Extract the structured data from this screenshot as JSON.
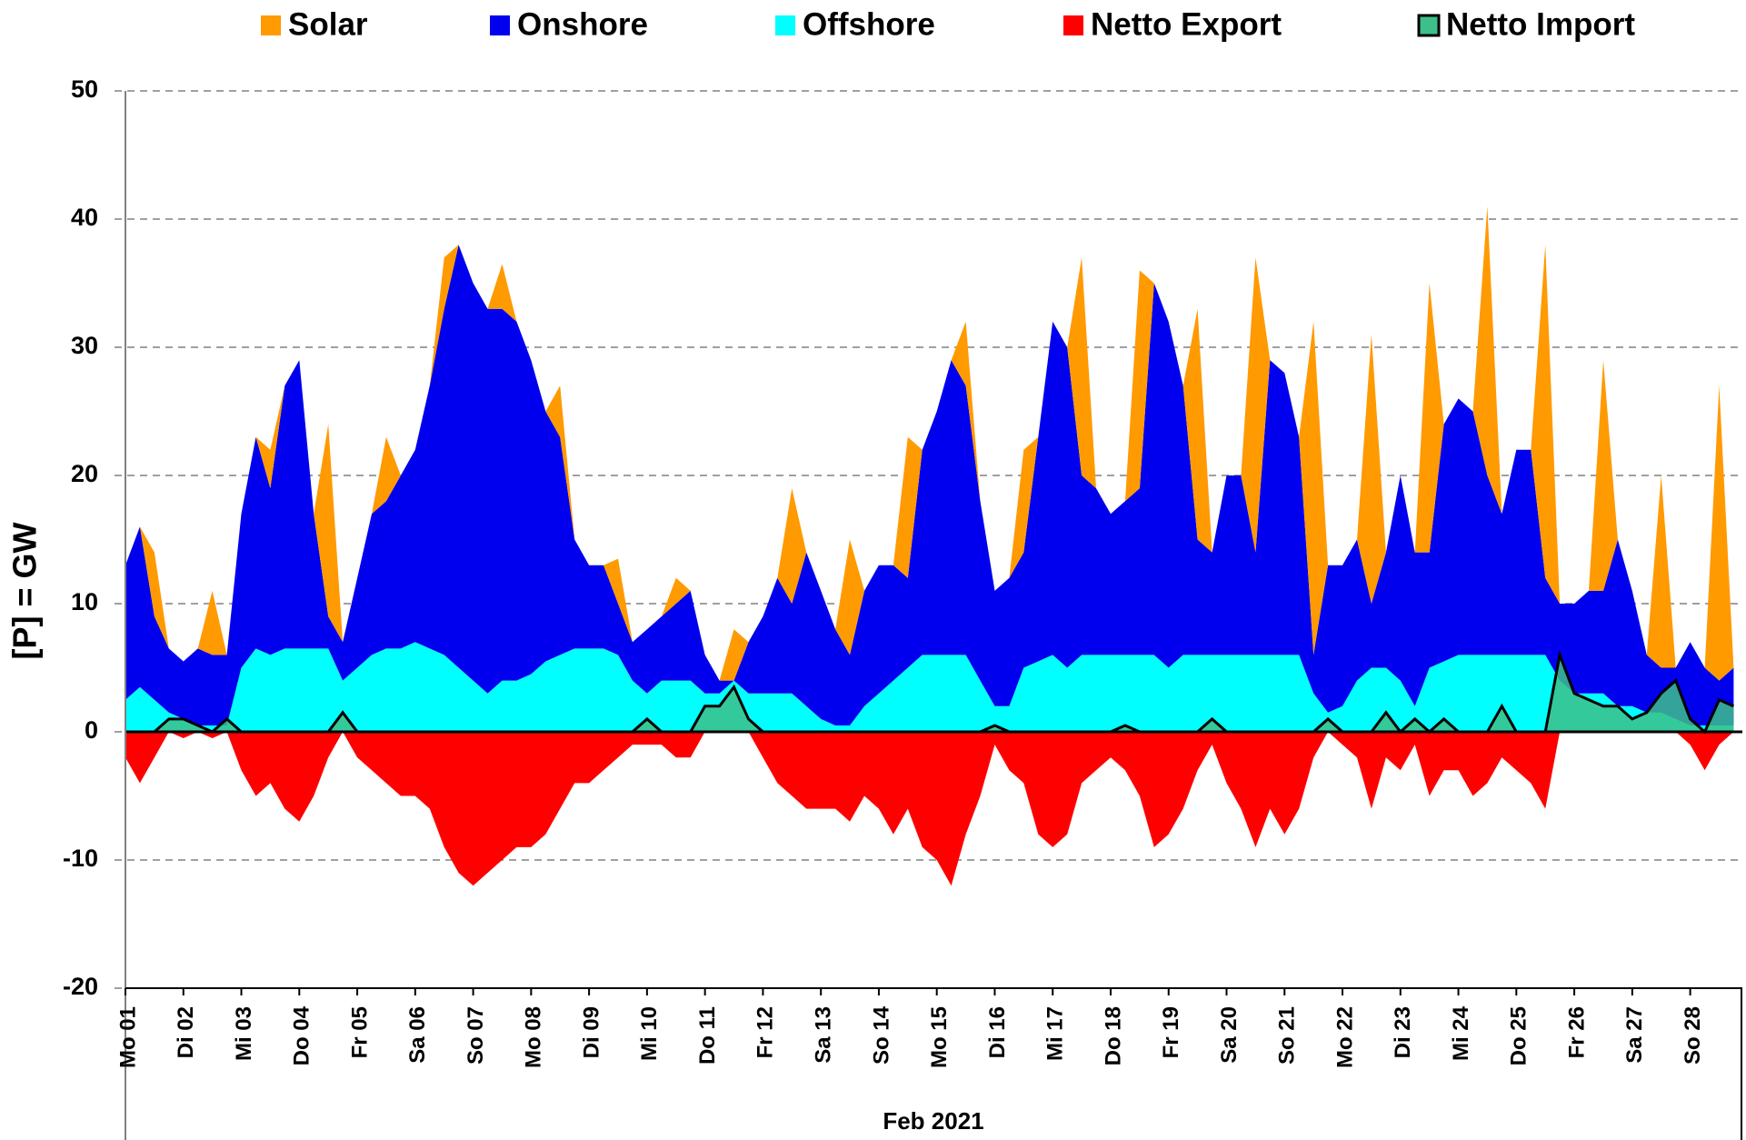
{
  "chart_data": {
    "type": "stacked-area",
    "xlabel": "Feb 2021",
    "ylabel": "[P] = GW",
    "xlim": [
      0,
      27.9
    ],
    "ylim": [
      -20,
      50
    ],
    "yticks": [
      50,
      40,
      30,
      20,
      10,
      0,
      -10,
      -20
    ],
    "negative_tick_color": "#ff0000",
    "grid": true,
    "legend": "top",
    "xticks": [
      {
        "value": 0,
        "label": "Mo 01"
      },
      {
        "value": 1,
        "label": "Di 02"
      },
      {
        "value": 2,
        "label": "Mi 03"
      },
      {
        "value": 3,
        "label": "Do 04"
      },
      {
        "value": 4,
        "label": "Fr 05"
      },
      {
        "value": 5,
        "label": "Sa 06"
      },
      {
        "value": 6,
        "label": "So 07"
      },
      {
        "value": 7,
        "label": "Mo 08"
      },
      {
        "value": 8,
        "label": "Di 09"
      },
      {
        "value": 9,
        "label": "Mi 10"
      },
      {
        "value": 10,
        "label": "Do 11"
      },
      {
        "value": 11,
        "label": "Fr 12"
      },
      {
        "value": 12,
        "label": "Sa 13"
      },
      {
        "value": 13,
        "label": "So 14"
      },
      {
        "value": 14,
        "label": "Mo 15"
      },
      {
        "value": 15,
        "label": "Di 16"
      },
      {
        "value": 16,
        "label": "Mi 17"
      },
      {
        "value": 17,
        "label": "Do 18"
      },
      {
        "value": 18,
        "label": "Fr 19"
      },
      {
        "value": 19,
        "label": "Sa 20"
      },
      {
        "value": 20,
        "label": "So 21"
      },
      {
        "value": 21,
        "label": "Mo 22"
      },
      {
        "value": 22,
        "label": "Di 23"
      },
      {
        "value": 23,
        "label": "Mi 24"
      },
      {
        "value": 24,
        "label": "Do 25"
      },
      {
        "value": 25,
        "label": "Fr 26"
      },
      {
        "value": 26,
        "label": "Sa 27"
      },
      {
        "value": 27,
        "label": "So 28"
      }
    ],
    "x": [
      0,
      0.25,
      0.5,
      0.75,
      1,
      1.25,
      1.5,
      1.75,
      2,
      2.25,
      2.5,
      2.75,
      3,
      3.25,
      3.5,
      3.75,
      4,
      4.25,
      4.5,
      4.75,
      5,
      5.25,
      5.5,
      5.75,
      6,
      6.25,
      6.5,
      6.75,
      7,
      7.25,
      7.5,
      7.75,
      8,
      8.25,
      8.5,
      8.75,
      9,
      9.25,
      9.5,
      9.75,
      10,
      10.25,
      10.5,
      10.75,
      11,
      11.25,
      11.5,
      11.75,
      12,
      12.25,
      12.5,
      12.75,
      13,
      13.25,
      13.5,
      13.75,
      14,
      14.25,
      14.5,
      14.75,
      15,
      15.25,
      15.5,
      15.75,
      16,
      16.25,
      16.5,
      16.75,
      17,
      17.25,
      17.5,
      17.75,
      18,
      18.25,
      18.5,
      18.75,
      19,
      19.25,
      19.5,
      19.75,
      20,
      20.25,
      20.5,
      20.75,
      21,
      21.25,
      21.5,
      21.75,
      22,
      22.25,
      22.5,
      22.75,
      23,
      23.25,
      23.5,
      23.75,
      24,
      24.25,
      24.5,
      24.75,
      25,
      25.25,
      25.5,
      25.75,
      26,
      26.25,
      26.5,
      26.75,
      27,
      27.25,
      27.5,
      27.75
    ],
    "series": [
      {
        "name": "Solar",
        "color": "#ff9a00",
        "stack": true,
        "values": [
          0,
          0,
          5,
          0,
          0,
          0,
          5,
          0,
          0,
          0,
          3,
          0,
          0,
          0,
          15,
          0,
          0,
          0,
          5,
          0,
          0,
          0,
          4,
          0,
          0,
          0,
          3.5,
          0,
          0,
          0,
          4,
          0,
          0,
          0,
          3.5,
          0,
          0,
          0,
          2,
          0,
          0,
          0,
          4,
          0,
          0,
          0,
          9,
          0,
          0,
          0,
          9,
          0,
          0,
          0,
          11,
          0,
          0,
          0,
          5,
          0,
          0,
          0,
          8,
          0,
          0,
          0,
          17,
          0,
          0,
          0,
          17,
          0,
          0,
          0,
          18,
          0,
          0,
          0,
          23,
          0,
          0,
          0,
          26,
          0,
          0,
          0,
          21,
          0,
          0,
          0,
          21,
          0,
          0,
          0,
          21,
          0,
          0,
          0,
          26,
          0,
          0,
          0,
          18,
          0,
          0,
          0,
          15,
          0,
          0,
          0,
          23,
          0
        ]
      },
      {
        "name": "Onshore",
        "color": "#0000ee",
        "stack": true,
        "values": [
          10.5,
          12.5,
          6.5,
          5,
          4.5,
          6,
          5.5,
          5.5,
          12,
          16.5,
          13,
          20.5,
          22.5,
          10.5,
          2.5,
          3,
          7,
          11,
          11.5,
          13.5,
          15,
          20.5,
          27,
          33,
          31,
          30,
          29,
          28,
          24.5,
          19.5,
          17,
          8.5,
          6.5,
          6.5,
          4,
          3,
          5,
          5,
          6,
          7,
          3,
          1,
          0,
          4,
          6,
          9,
          7,
          12,
          10,
          7.5,
          5.5,
          9,
          10,
          9,
          7,
          16,
          19,
          23,
          21,
          14,
          9,
          10,
          9,
          17.5,
          26,
          25,
          14,
          13,
          11,
          12,
          13,
          29,
          27,
          21,
          9,
          8,
          14,
          14,
          8,
          23,
          22,
          17,
          3,
          11.5,
          11,
          11,
          5,
          9,
          16,
          12,
          9,
          18.5,
          20,
          19,
          14,
          11,
          16,
          16,
          6,
          6,
          7,
          8,
          8,
          13,
          9,
          4.5,
          3.5,
          4,
          6.5,
          4.5,
          3.5,
          4.5
        ]
      },
      {
        "name": "Offshore",
        "color": "#00ffff",
        "stack": true,
        "values": [
          2.5,
          3.5,
          2.5,
          1.5,
          1,
          0.5,
          0.5,
          0.5,
          5,
          6.5,
          6,
          6.5,
          6.5,
          6.5,
          6.5,
          4,
          5,
          6,
          6.5,
          6.5,
          7,
          6.5,
          6,
          5,
          4,
          3,
          4,
          4,
          4.5,
          5.5,
          6,
          6.5,
          6.5,
          6.5,
          6,
          4,
          3,
          4,
          4,
          4,
          3,
          3,
          4,
          3,
          3,
          3,
          3,
          2,
          1,
          0.5,
          0.5,
          2,
          3,
          4,
          5,
          6,
          6,
          6,
          6,
          4,
          2,
          2,
          5,
          5.5,
          6,
          5,
          6,
          6,
          6,
          6,
          6,
          6,
          5,
          6,
          6,
          6,
          6,
          6,
          6,
          6,
          6,
          6,
          3,
          1.5,
          2,
          4,
          5,
          5,
          4,
          2,
          5,
          5.5,
          6,
          6,
          6,
          6,
          6,
          6,
          6,
          4,
          3,
          3,
          3,
          2,
          2,
          1.5,
          1.5,
          1,
          0.5,
          0.5,
          0.5,
          0.5
        ]
      },
      {
        "name": "Netto Export",
        "color": "#ff0000",
        "values": [
          -2,
          -4,
          -2,
          0,
          -0.5,
          0,
          -0.5,
          0,
          -3,
          -5,
          -4,
          -6,
          -7,
          -5,
          -2,
          0,
          -2,
          -3,
          -4,
          -5,
          -5,
          -6,
          -9,
          -11,
          -12,
          -11,
          -10,
          -9,
          -9,
          -8,
          -6,
          -4,
          -4,
          -3,
          -2,
          -1,
          -1,
          -1,
          -2,
          -2,
          0,
          0,
          0,
          0,
          -2,
          -4,
          -5,
          -6,
          -6,
          -6,
          -7,
          -5,
          -6,
          -8,
          -6,
          -9,
          -10,
          -12,
          -8,
          -5,
          -1,
          -3,
          -4,
          -8,
          -9,
          -8,
          -4,
          -3,
          -2,
          -3,
          -5,
          -9,
          -8,
          -6,
          -3,
          -1,
          -4,
          -6,
          -9,
          -6,
          -8,
          -6,
          -2,
          0,
          -1,
          -2,
          -6,
          -2,
          -3,
          -1,
          -5,
          -3,
          -3,
          -5,
          -4,
          -2,
          -3,
          -4,
          -6,
          0,
          0,
          0,
          0,
          0,
          0,
          0,
          0,
          0,
          -1,
          -3,
          -1,
          0
        ]
      },
      {
        "name": "Netto Import",
        "color": "#3dbf8a",
        "line_color": "#000000",
        "values": [
          0,
          0,
          0,
          1,
          1,
          0.5,
          0,
          1,
          0,
          0,
          0,
          0,
          0,
          0,
          0,
          1.5,
          0,
          0,
          0,
          0,
          0,
          0,
          0,
          0,
          0,
          0,
          0,
          0,
          0,
          0,
          0,
          0,
          0,
          0,
          0,
          0,
          1,
          0,
          0,
          0,
          2,
          2,
          3.5,
          1,
          0,
          0,
          0,
          0,
          0,
          0,
          0,
          0,
          0,
          0,
          0,
          0,
          0,
          0,
          0,
          0,
          0.5,
          0,
          0,
          0,
          0,
          0,
          0,
          0,
          0,
          0.5,
          0,
          0,
          0,
          0,
          0,
          1,
          0,
          0,
          0,
          0,
          0,
          0,
          0,
          1,
          0,
          0,
          0,
          1.5,
          0,
          1,
          0,
          1,
          0,
          0,
          0,
          2,
          0,
          0,
          0,
          6,
          3,
          2.5,
          2,
          2,
          1,
          1.5,
          3,
          4,
          1,
          0,
          2.5,
          2
        ]
      }
    ]
  }
}
